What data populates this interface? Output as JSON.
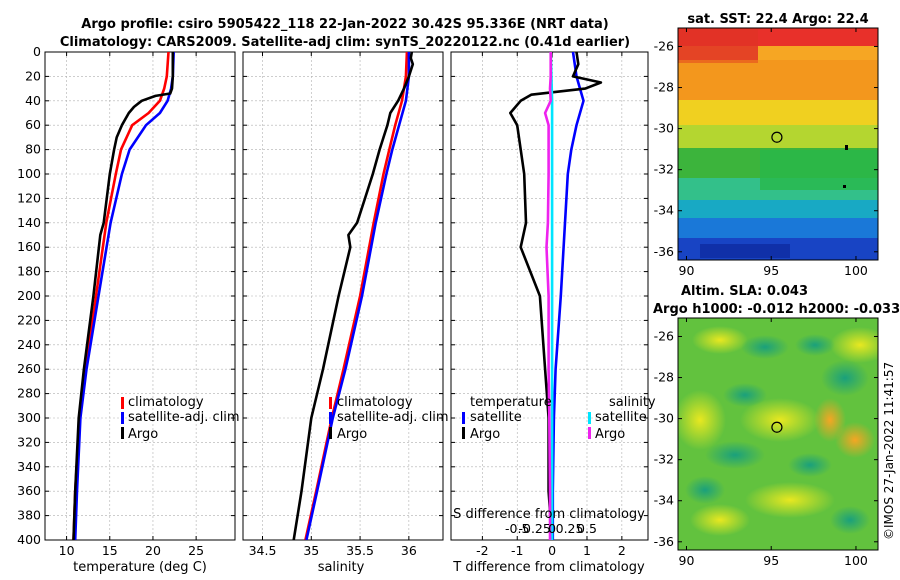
{
  "header": {
    "title_line1": "Argo profile: csiro 5905422_118 22-Jan-2022 30.42S 95.336E (NRT data)",
    "title_line2": "Climatology: CARS2009. Satellite-adj clim: synTS_20220122.nc (0.41d earlier)"
  },
  "colors": {
    "climatology": "#ff0000",
    "satellite": "#0000ff",
    "argo": "#000000",
    "salinity_satellite": "#00e5ff",
    "salinity_argo": "#ee22ee"
  },
  "chart_data": [
    {
      "type": "line",
      "id": "temperature",
      "xlabel": "temperature (deg C)",
      "ylabel": "",
      "xlim": [
        7.5,
        29.5
      ],
      "ylim": [
        0,
        400
      ],
      "y_inverted": true,
      "grid": true,
      "xticks": [
        10,
        15,
        20,
        25
      ],
      "xtick_labels": [
        "10",
        "15",
        "20",
        "25"
      ],
      "yticks": [
        0,
        20,
        40,
        60,
        80,
        100,
        120,
        140,
        160,
        180,
        200,
        220,
        240,
        260,
        280,
        300,
        320,
        340,
        360,
        380,
        400
      ],
      "ytick_labels": [
        "0",
        "20",
        "40",
        "60",
        "80",
        "100",
        "120",
        "140",
        "160",
        "180",
        "200",
        "220",
        "240",
        "260",
        "280",
        "300",
        "320",
        "340",
        "360",
        "380",
        "400"
      ],
      "legend": {
        "position": "bottom-right",
        "entries": [
          "climatology",
          "satellite-adj. clim",
          "Argo"
        ]
      },
      "series": [
        {
          "name": "climatology",
          "color_key": "climatology",
          "depth": [
            0,
            20,
            30,
            40,
            50,
            60,
            80,
            100,
            140,
            200,
            260,
            300,
            360,
            400
          ],
          "values": [
            21.8,
            21.6,
            21.3,
            20.8,
            19.5,
            17.6,
            16.3,
            15.7,
            14.6,
            13.4,
            12.2,
            11.5,
            11.0,
            10.8
          ]
        },
        {
          "name": "satellite-adj. clim",
          "color_key": "satellite",
          "depth": [
            0,
            20,
            30,
            40,
            50,
            60,
            80,
            100,
            140,
            200,
            260,
            300,
            360,
            400
          ],
          "values": [
            22.4,
            22.3,
            22.1,
            21.7,
            20.8,
            19.2,
            17.3,
            16.4,
            15.1,
            13.7,
            12.3,
            11.6,
            11.2,
            11.0
          ]
        },
        {
          "name": "Argo",
          "color_key": "argo",
          "depth": [
            0,
            20,
            30,
            34,
            36,
            40,
            45,
            50,
            60,
            70,
            80,
            100,
            140,
            150,
            200,
            260,
            300,
            360,
            400
          ],
          "values": [
            22.3,
            22.3,
            22.2,
            22.0,
            20.3,
            18.7,
            17.8,
            17.2,
            16.4,
            15.8,
            15.5,
            15.0,
            14.3,
            13.9,
            13.1,
            12.0,
            11.4,
            11.0,
            10.8
          ]
        }
      ]
    },
    {
      "type": "line",
      "id": "salinity",
      "xlabel": "salinity",
      "ylabel": "",
      "xlim": [
        34.3,
        36.35
      ],
      "ylim": [
        0,
        400
      ],
      "y_inverted": true,
      "grid": true,
      "xticks": [
        34.5,
        35,
        35.5,
        36
      ],
      "xtick_labels": [
        "34.5",
        "35",
        "35.5",
        "36"
      ],
      "legend": {
        "position": "bottom-right",
        "entries": [
          "climatology",
          "satellite-adj. clim",
          "Argo"
        ]
      },
      "series": [
        {
          "name": "climatology",
          "color_key": "climatology",
          "depth": [
            0,
            20,
            40,
            60,
            80,
            100,
            140,
            200,
            260,
            300,
            360,
            400
          ],
          "values": [
            35.98,
            35.97,
            35.93,
            35.86,
            35.8,
            35.74,
            35.64,
            35.5,
            35.33,
            35.21,
            35.05,
            34.94
          ]
        },
        {
          "name": "satellite-adj. clim",
          "color_key": "satellite",
          "depth": [
            0,
            20,
            40,
            60,
            80,
            100,
            140,
            200,
            260,
            300,
            360,
            400
          ],
          "values": [
            36.0,
            36.0,
            35.97,
            35.9,
            35.83,
            35.77,
            35.66,
            35.52,
            35.35,
            35.22,
            35.06,
            34.95
          ]
        },
        {
          "name": "Argo",
          "color_key": "argo",
          "depth": [
            0,
            5,
            10,
            20,
            30,
            40,
            50,
            60,
            70,
            80,
            100,
            120,
            140,
            150,
            160,
            200,
            260,
            300,
            360,
            400
          ],
          "values": [
            36.03,
            36.02,
            36.04,
            36.0,
            35.95,
            35.89,
            35.81,
            35.78,
            35.74,
            35.7,
            35.63,
            35.55,
            35.47,
            35.38,
            35.4,
            35.28,
            35.12,
            35.0,
            34.9,
            34.82
          ]
        }
      ]
    },
    {
      "type": "line",
      "id": "difference",
      "xlabel": "T difference from climatology",
      "xlabel_top": "S difference from climatology",
      "xlim": [
        -2.9,
        2.75
      ],
      "ylim": [
        0,
        400
      ],
      "y_inverted": true,
      "grid": true,
      "xticks": [
        -2,
        -1,
        0,
        1,
        2
      ],
      "xtick_labels": [
        "-2",
        "-1",
        "0",
        "1",
        "2"
      ],
      "s_xticks": [
        -0.5,
        -0.25,
        0,
        0.25,
        0.5
      ],
      "s_xtick_labels": [
        "-0.5",
        "-0.25",
        "0",
        "0.25",
        "0.5"
      ],
      "s_scale": 2,
      "legend_temperature": {
        "heading": "temperature",
        "entries": [
          "satellite",
          "Argo"
        ]
      },
      "legend_salinity": {
        "heading": "salinity",
        "entries": [
          "satellite",
          "Argo"
        ]
      },
      "series": [
        {
          "name": "T satellite",
          "color_key": "satellite",
          "units": "T",
          "depth": [
            0,
            20,
            30,
            40,
            60,
            80,
            100,
            150,
            200,
            260,
            300,
            360,
            400
          ],
          "values": [
            0.6,
            0.7,
            0.8,
            0.9,
            0.7,
            0.55,
            0.45,
            0.35,
            0.25,
            0.1,
            0.05,
            0.02,
            0.02
          ]
        },
        {
          "name": "T Argo",
          "color_key": "argo",
          "units": "T",
          "depth": [
            0,
            10,
            20,
            25,
            30,
            35,
            40,
            50,
            60,
            80,
            100,
            140,
            160,
            200,
            260,
            300,
            360,
            400
          ],
          "values": [
            0.7,
            0.75,
            0.6,
            1.4,
            0.95,
            -0.6,
            -0.9,
            -1.2,
            -1.0,
            -0.9,
            -0.8,
            -0.75,
            -0.9,
            -0.35,
            -0.2,
            -0.1,
            -0.1,
            0.0
          ]
        },
        {
          "name": "S satellite",
          "color_key": "salinity_satellite",
          "units": "S",
          "depth": [
            0,
            20,
            40,
            60,
            100,
            200,
            300,
            400
          ],
          "values": [
            -0.02,
            -0.01,
            0.0,
            0.0,
            0.0,
            0.0,
            0.0,
            0.0
          ]
        },
        {
          "name": "S Argo",
          "color_key": "salinity_argo",
          "units": "S",
          "depth": [
            0,
            20,
            30,
            40,
            50,
            60,
            80,
            100,
            140,
            160,
            200,
            260,
            300,
            360,
            400
          ],
          "values": [
            -0.02,
            -0.02,
            -0.03,
            -0.02,
            -0.1,
            -0.05,
            -0.05,
            -0.05,
            -0.06,
            -0.08,
            -0.05,
            -0.05,
            -0.04,
            -0.03,
            -0.03
          ]
        }
      ]
    }
  ],
  "maps": {
    "sst": {
      "title": "sat. SST: 22.4 Argo: 22.4",
      "xlim": [
        89.5,
        101.3
      ],
      "ylim": [
        -36.4,
        -25.1
      ],
      "xticks": [
        90,
        95,
        100
      ],
      "xtick_labels": [
        "90",
        "95",
        "100"
      ],
      "yticks": [
        -26,
        -28,
        -30,
        -32,
        -34,
        -36
      ],
      "ytick_labels": [
        "-26",
        "-28",
        "-30",
        "-32",
        "-34",
        "-36"
      ],
      "marker": {
        "lon": 95.336,
        "lat": -30.42
      }
    },
    "sla": {
      "title_line1": "Altim. SLA: 0.043",
      "title_line2": "Argo h1000: -0.012 h2000: -0.033",
      "xlim": [
        89.5,
        101.3
      ],
      "ylim": [
        -36.4,
        -25.1
      ],
      "xticks": [
        90,
        95,
        100
      ],
      "xtick_labels": [
        "90",
        "95",
        "100"
      ],
      "yticks": [
        -26,
        -28,
        -30,
        -32,
        -34,
        -36
      ],
      "ytick_labels": [
        "-26",
        "-28",
        "-30",
        "-32",
        "-34",
        "-36"
      ],
      "marker": {
        "lon": 95.336,
        "lat": -30.42
      }
    }
  },
  "footer": {
    "stamp": "©IMOS 27-Jan-2022 11:41:57"
  }
}
